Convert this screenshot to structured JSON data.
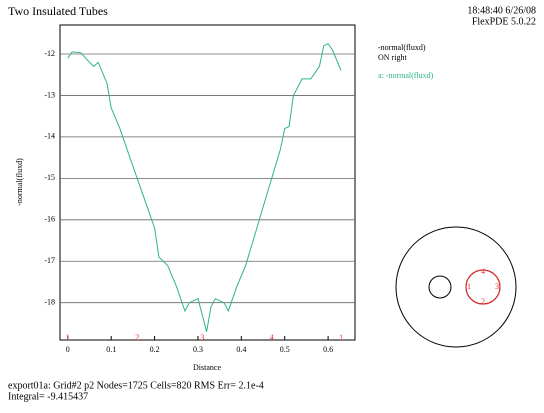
{
  "chart_data": {
    "type": "line",
    "title": "Two Insulated Tubes",
    "timestamp": "18:48:40 6/26/08",
    "version": "FlexPDE 5.0.22",
    "legend_title": "-normal(fluxd)",
    "legend_subtitle": "ON right",
    "xlabel": "Distance",
    "ylabel": "-normal(fluxd)",
    "footer": [
      "export01a:  Grid#2  p2  Nodes=1725 Cells=820 RMS Err= 2.1e-4",
      "Integral= -9.415437"
    ],
    "x": [
      0,
      0.01,
      0.03,
      0.05,
      0.06,
      0.07,
      0.09,
      0.1,
      0.12,
      0.14,
      0.16,
      0.18,
      0.2,
      0.21,
      0.23,
      0.25,
      0.27,
      0.28,
      0.3,
      0.31,
      0.32,
      0.33,
      0.34,
      0.36,
      0.37,
      0.39,
      0.41,
      0.43,
      0.45,
      0.47,
      0.49,
      0.5,
      0.51,
      0.52,
      0.54,
      0.56,
      0.58,
      0.59,
      0.6,
      0.61,
      0.63
    ],
    "series": [
      {
        "name": "a: -normal(fluxd)",
        "color": "#2db38a",
        "values": [
          -12.1,
          -11.95,
          -11.97,
          -12.2,
          -12.3,
          -12.2,
          -12.7,
          -13.3,
          -13.8,
          -14.4,
          -15.0,
          -15.6,
          -16.2,
          -16.9,
          -17.1,
          -17.6,
          -18.2,
          -18.0,
          -17.9,
          -18.3,
          -18.7,
          -18.1,
          -17.9,
          -18.0,
          -18.2,
          -17.6,
          -17.1,
          -16.4,
          -15.7,
          -15.0,
          -14.3,
          -13.8,
          -13.75,
          -13.0,
          -12.6,
          -12.6,
          -12.3,
          -11.8,
          -11.75,
          -11.9,
          -12.4
        ]
      }
    ],
    "xlim": [
      -0.018,
      0.662
    ],
    "ylim": [
      -18.9,
      -11.3
    ],
    "xticks": [
      0,
      0.1,
      0.2,
      0.3,
      0.4,
      0.5,
      0.6
    ],
    "yticks": [
      -12,
      -13,
      -14,
      -15,
      -16,
      -17,
      -18
    ],
    "grid": true,
    "markers": [
      {
        "x": 0,
        "label": "1"
      },
      {
        "x": 0.16,
        "label": "2"
      },
      {
        "x": 0.31,
        "label": "3"
      },
      {
        "x": 0.47,
        "label": "4"
      },
      {
        "x": 0.63,
        "label": "1"
      }
    ],
    "diagram_labels": [
      "4",
      "1",
      "3",
      "2"
    ]
  }
}
